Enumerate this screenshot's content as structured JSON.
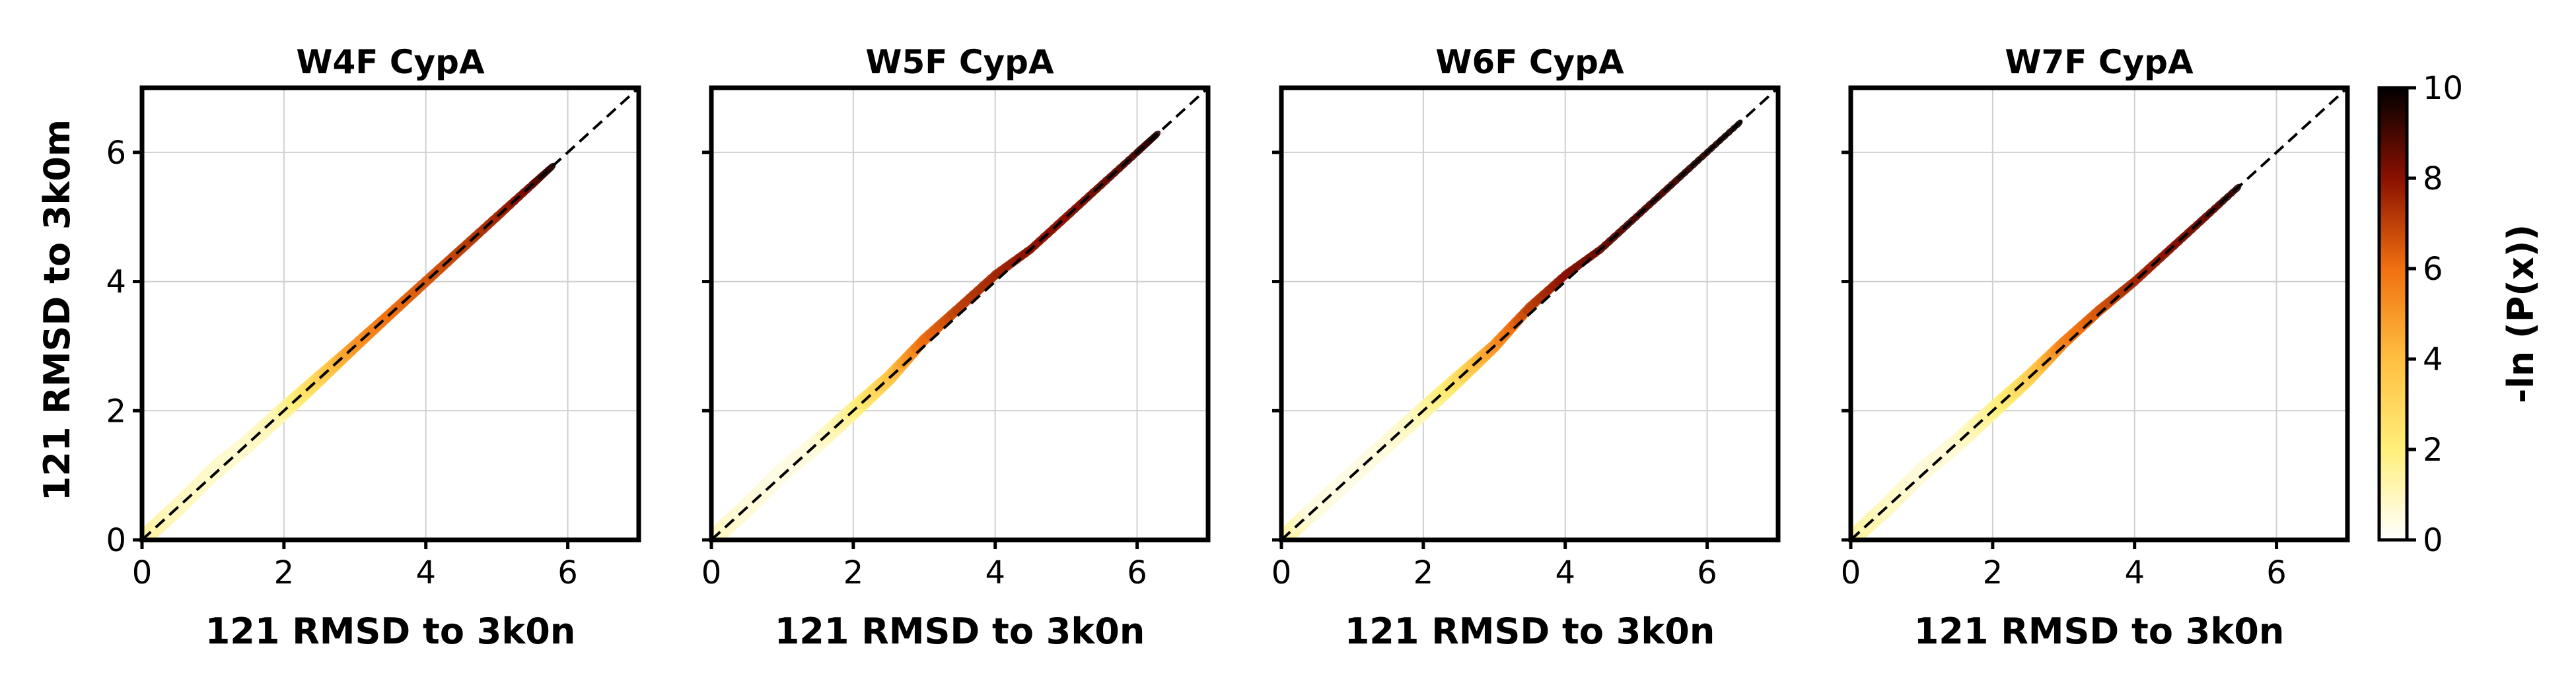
{
  "chart_data": {
    "type": "heatmap",
    "colormap": "afmhot_r",
    "diagonal_reference": {
      "style": "dashed",
      "color": "#000000",
      "from": [
        0,
        0
      ],
      "to": [
        7,
        7
      ]
    },
    "shared_y": true,
    "ylabel": "121 RMSD to 3k0m",
    "panels": [
      {
        "title": "W4F CypA",
        "xlabel": "121 RMSD to 3k0n",
        "xlim": [
          0,
          7
        ],
        "ylim": [
          0,
          7
        ],
        "xticks": [
          "0",
          "2",
          "4",
          "6"
        ],
        "yticks": [
          "0",
          "2",
          "4",
          "6"
        ],
        "grid": true,
        "density_band": [
          {
            "x": 0.1,
            "y": 0.1,
            "energy": 1.5
          },
          {
            "x": 0.5,
            "y": 0.5,
            "energy": 1.0
          },
          {
            "x": 1.0,
            "y": 1.05,
            "energy": 0.8
          },
          {
            "x": 1.5,
            "y": 1.5,
            "energy": 0.7
          },
          {
            "x": 2.0,
            "y": 2.0,
            "energy": 1.2
          },
          {
            "x": 2.5,
            "y": 2.5,
            "energy": 3.0
          },
          {
            "x": 3.0,
            "y": 3.0,
            "energy": 5.0
          },
          {
            "x": 3.5,
            "y": 3.5,
            "energy": 6.0
          },
          {
            "x": 4.0,
            "y": 4.0,
            "energy": 6.5
          },
          {
            "x": 4.5,
            "y": 4.5,
            "energy": 7.0
          },
          {
            "x": 5.0,
            "y": 5.0,
            "energy": 7.5
          },
          {
            "x": 5.5,
            "y": 5.5,
            "energy": 8.5
          },
          {
            "x": 5.8,
            "y": 5.8,
            "energy": 9.5
          }
        ]
      },
      {
        "title": "W5F CypA",
        "xlabel": "121 RMSD to 3k0n",
        "xlim": [
          0,
          7
        ],
        "ylim": [
          0,
          7
        ],
        "xticks": [
          "0",
          "2",
          "4",
          "6"
        ],
        "yticks": [
          "",
          "",
          "",
          ""
        ],
        "grid": true,
        "density_band": [
          {
            "x": 0.1,
            "y": 0.1,
            "energy": 1.0
          },
          {
            "x": 0.5,
            "y": 0.5,
            "energy": 0.6
          },
          {
            "x": 1.0,
            "y": 1.05,
            "energy": 0.4
          },
          {
            "x": 1.5,
            "y": 1.5,
            "energy": 0.5
          },
          {
            "x": 2.0,
            "y": 2.0,
            "energy": 1.5
          },
          {
            "x": 2.5,
            "y": 2.5,
            "energy": 3.5
          },
          {
            "x": 3.0,
            "y": 3.1,
            "energy": 6.0
          },
          {
            "x": 3.5,
            "y": 3.6,
            "energy": 7.0
          },
          {
            "x": 4.0,
            "y": 4.1,
            "energy": 7.5
          },
          {
            "x": 4.5,
            "y": 4.5,
            "energy": 8.0
          },
          {
            "x": 5.0,
            "y": 5.0,
            "energy": 8.0
          },
          {
            "x": 5.5,
            "y": 5.5,
            "energy": 8.5
          },
          {
            "x": 6.0,
            "y": 6.0,
            "energy": 9.0
          },
          {
            "x": 6.3,
            "y": 6.3,
            "energy": 9.5
          }
        ]
      },
      {
        "title": "W6F CypA",
        "xlabel": "121 RMSD to 3k0n",
        "xlim": [
          0,
          7
        ],
        "ylim": [
          0,
          7
        ],
        "xticks": [
          "0",
          "2",
          "4",
          "6"
        ],
        "yticks": [
          "",
          "",
          "",
          ""
        ],
        "grid": true,
        "density_band": [
          {
            "x": 0.1,
            "y": 0.1,
            "energy": 1.5
          },
          {
            "x": 0.5,
            "y": 0.5,
            "energy": 0.5
          },
          {
            "x": 1.0,
            "y": 1.0,
            "energy": 0.4
          },
          {
            "x": 1.5,
            "y": 1.5,
            "energy": 0.5
          },
          {
            "x": 2.0,
            "y": 2.0,
            "energy": 1.0
          },
          {
            "x": 2.5,
            "y": 2.5,
            "energy": 2.5
          },
          {
            "x": 3.0,
            "y": 3.0,
            "energy": 5.0
          },
          {
            "x": 3.5,
            "y": 3.6,
            "energy": 7.0
          },
          {
            "x": 4.0,
            "y": 4.1,
            "energy": 8.0
          },
          {
            "x": 4.5,
            "y": 4.5,
            "energy": 8.5
          },
          {
            "x": 5.0,
            "y": 5.0,
            "energy": 9.0
          },
          {
            "x": 5.5,
            "y": 5.5,
            "energy": 9.0
          },
          {
            "x": 6.0,
            "y": 6.0,
            "energy": 9.5
          },
          {
            "x": 6.5,
            "y": 6.5,
            "energy": 9.8
          }
        ]
      },
      {
        "title": "W7F CypA",
        "xlabel": "121 RMSD to 3k0n",
        "xlim": [
          0,
          7
        ],
        "ylim": [
          0,
          7
        ],
        "xticks": [
          "0",
          "2",
          "4",
          "6"
        ],
        "yticks": [
          "",
          "",
          "",
          ""
        ],
        "grid": true,
        "density_band": [
          {
            "x": 0.1,
            "y": 0.1,
            "energy": 1.5
          },
          {
            "x": 0.5,
            "y": 0.5,
            "energy": 1.0
          },
          {
            "x": 1.0,
            "y": 1.05,
            "energy": 0.6
          },
          {
            "x": 1.5,
            "y": 1.5,
            "energy": 0.6
          },
          {
            "x": 2.0,
            "y": 2.0,
            "energy": 1.5
          },
          {
            "x": 2.5,
            "y": 2.5,
            "energy": 3.0
          },
          {
            "x": 3.0,
            "y": 3.05,
            "energy": 5.5
          },
          {
            "x": 3.5,
            "y": 3.55,
            "energy": 6.5
          },
          {
            "x": 4.0,
            "y": 4.0,
            "energy": 7.5
          },
          {
            "x": 4.5,
            "y": 4.5,
            "energy": 8.0
          },
          {
            "x": 5.0,
            "y": 5.0,
            "energy": 8.5
          },
          {
            "x": 5.5,
            "y": 5.5,
            "energy": 9.5
          }
        ]
      }
    ],
    "colorbar": {
      "label": "-ln (P(x))",
      "range": [
        0,
        10
      ],
      "ticks": [
        "0",
        "2",
        "4",
        "6",
        "8",
        "10"
      ]
    }
  }
}
